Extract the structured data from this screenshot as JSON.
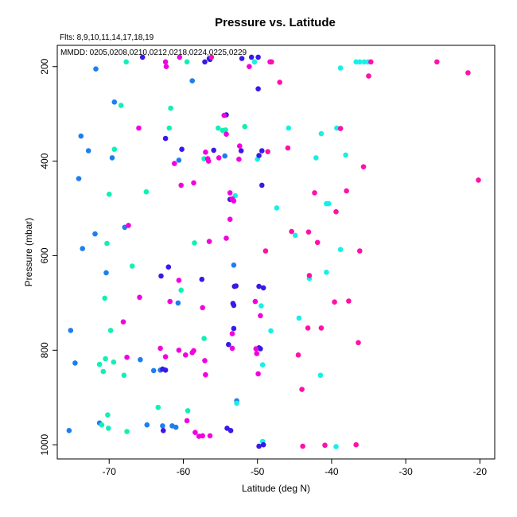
{
  "chart_data": {
    "type": "scatter",
    "title": "Pressure vs. Latitude",
    "subtitle_top": "Flts: 8,9,10,11,14,17,18,19",
    "subtitle_box": "MMDD: 0205,0208,0210,0212,0218,0224,0225,0229",
    "xlabel": "Latitude (deg N)",
    "ylabel": "Pressure (mbar)",
    "xlim": [
      -77,
      -18
    ],
    "ylim": [
      1030,
      155
    ],
    "y_reversed": true,
    "grid": false,
    "xticks": [
      -70,
      -60,
      -50,
      -40,
      -30,
      -20
    ],
    "xtick_labels": [
      "-70",
      "-60",
      "-50",
      "-40",
      "-30",
      "-20"
    ],
    "yticks": [
      200,
      400,
      600,
      800,
      1000
    ],
    "ytick_labels": [
      "200",
      "400",
      "600",
      "800",
      "1000"
    ],
    "colors": {
      "blue": "#1c7ff0",
      "cyan": "#16f0e6",
      "aqua": "#10f0b4",
      "violet": "#3a19e8",
      "magenta": "#f200e0",
      "pink": "#ff10a8"
    },
    "series": [
      {
        "color_key": "blue",
        "points": [
          [
            -71.8,
            205
          ],
          [
            -69.3,
            275
          ],
          [
            -73.8,
            347
          ],
          [
            -72.8,
            378
          ],
          [
            -69.6,
            393
          ],
          [
            -74.1,
            437
          ],
          [
            -71.9,
            554
          ],
          [
            -73.6,
            585
          ],
          [
            -67.9,
            540
          ],
          [
            -70.4,
            636
          ],
          [
            -60.6,
            398
          ],
          [
            -75.2,
            758
          ],
          [
            -74.6,
            827
          ],
          [
            -65.8,
            820
          ],
          [
            -64,
            843
          ],
          [
            -75.4,
            970
          ],
          [
            -71.3,
            954
          ],
          [
            -64.9,
            958
          ],
          [
            -62.8,
            960
          ],
          [
            -61.5,
            960
          ],
          [
            -61,
            963
          ],
          [
            -60.7,
            700
          ],
          [
            -63.1,
            842
          ],
          [
            -58.8,
            230
          ],
          [
            -54.4,
            389
          ],
          [
            -52.8,
            907
          ],
          [
            -53.2,
            620
          ]
        ]
      },
      {
        "color_key": "cyan",
        "points": [
          [
            -40.7,
            490
          ],
          [
            -40.4,
            490
          ],
          [
            -47.4,
            499
          ],
          [
            -44.9,
            557
          ],
          [
            -38.8,
            587
          ],
          [
            -40.7,
            635
          ],
          [
            -43,
            648
          ],
          [
            -49.5,
            706
          ],
          [
            -48.2,
            759
          ],
          [
            -44.4,
            732
          ],
          [
            -41.5,
            853
          ],
          [
            -39.4,
            1004
          ],
          [
            -49.3,
            993
          ],
          [
            -49.3,
            831
          ],
          [
            -36.7,
            190
          ],
          [
            -36.2,
            190
          ],
          [
            -35.6,
            190
          ],
          [
            -35.1,
            190
          ],
          [
            -38.8,
            203
          ],
          [
            -39.3,
            330
          ],
          [
            -41.4,
            342
          ],
          [
            -42.1,
            393
          ],
          [
            -38.1,
            387
          ],
          [
            -45.8,
            330
          ],
          [
            -50.4,
            190
          ],
          [
            -52.8,
            912
          ],
          [
            -53,
            473
          ],
          [
            -50,
            396
          ]
        ]
      },
      {
        "color_key": "aqua",
        "points": [
          [
            -67.7,
            190
          ],
          [
            -59.5,
            190
          ],
          [
            -68.4,
            282
          ],
          [
            -61.7,
            288
          ],
          [
            -61.9,
            330
          ],
          [
            -69.3,
            375
          ],
          [
            -65,
            465
          ],
          [
            -70,
            470
          ],
          [
            -70.3,
            574
          ],
          [
            -66.9,
            622
          ],
          [
            -58.5,
            573
          ],
          [
            -60.3,
            673
          ],
          [
            -70.6,
            690
          ],
          [
            -69.8,
            758
          ],
          [
            -57.2,
            775
          ],
          [
            -69.4,
            825
          ],
          [
            -70.5,
            818
          ],
          [
            -71.3,
            830
          ],
          [
            -70.8,
            845
          ],
          [
            -68,
            853
          ],
          [
            -71,
            958
          ],
          [
            -70.1,
            965
          ],
          [
            -70.2,
            937
          ],
          [
            -67.6,
            972
          ],
          [
            -63.4,
            921
          ],
          [
            -59.4,
            928
          ],
          [
            -55.3,
            330
          ],
          [
            -54.7,
            335
          ],
          [
            -54.3,
            334
          ],
          [
            -51.7,
            327
          ],
          [
            -57.2,
            395
          ]
        ]
      },
      {
        "color_key": "violet",
        "points": [
          [
            -56.5,
            183
          ],
          [
            -56.4,
            185
          ],
          [
            -65.5,
            180
          ],
          [
            -52.1,
            183
          ],
          [
            -50.8,
            180
          ],
          [
            -49.9,
            180
          ],
          [
            -57.1,
            190
          ],
          [
            -49.9,
            247
          ],
          [
            -62.4,
            352
          ],
          [
            -60.2,
            375
          ],
          [
            -55.9,
            377
          ],
          [
            -54.2,
            302
          ],
          [
            -52.2,
            378
          ],
          [
            -49.4,
            378
          ],
          [
            -49.8,
            388
          ],
          [
            -49.4,
            451
          ],
          [
            -53.7,
            481
          ],
          [
            -62,
            624
          ],
          [
            -63,
            643
          ],
          [
            -57.5,
            650
          ],
          [
            -53.1,
            665
          ],
          [
            -52.9,
            664
          ],
          [
            -49.8,
            665
          ],
          [
            -49.2,
            668
          ],
          [
            -53.3,
            701
          ],
          [
            -53.2,
            705
          ],
          [
            -53.2,
            754
          ],
          [
            -49.8,
            795
          ],
          [
            -49.6,
            797
          ],
          [
            -53.9,
            788
          ],
          [
            -62.8,
            840
          ],
          [
            -62.4,
            842
          ],
          [
            -54.1,
            965
          ],
          [
            -53.6,
            970
          ],
          [
            -62.7,
            970
          ],
          [
            -49.8,
            1003
          ],
          [
            -49.2,
            1000
          ]
        ]
      },
      {
        "color_key": "magenta",
        "points": [
          [
            -60.5,
            180
          ],
          [
            -62.3,
            200
          ],
          [
            -62.4,
            190
          ],
          [
            -66,
            330
          ],
          [
            -61.2,
            405
          ],
          [
            -60.3,
            451
          ],
          [
            -58.6,
            446
          ],
          [
            -56.7,
            395
          ],
          [
            -56.6,
            400
          ],
          [
            -57,
            381
          ],
          [
            -53.7,
            467
          ],
          [
            -53.7,
            523
          ],
          [
            -53.4,
            480
          ],
          [
            -54.2,
            563
          ],
          [
            -56.5,
            570
          ],
          [
            -67.4,
            536
          ],
          [
            -60.6,
            652
          ],
          [
            -61.8,
            697
          ],
          [
            -57.4,
            710
          ],
          [
            -65.9,
            688
          ],
          [
            -68.1,
            740
          ],
          [
            -62.4,
            814
          ],
          [
            -60.6,
            800
          ],
          [
            -59.7,
            810
          ],
          [
            -58.8,
            805
          ],
          [
            -58.6,
            801
          ],
          [
            -57.1,
            822
          ],
          [
            -67.6,
            815
          ],
          [
            -63.1,
            796
          ],
          [
            -57,
            852
          ],
          [
            -59.5,
            949
          ],
          [
            -58.4,
            974
          ],
          [
            -57.4,
            981
          ],
          [
            -57.9,
            982
          ],
          [
            -56.4,
            981
          ],
          [
            -50.2,
            797
          ],
          [
            -50.1,
            807
          ],
          [
            -53.4,
            796
          ],
          [
            -50.3,
            697
          ],
          [
            -49.6,
            727
          ],
          [
            -49.9,
            850
          ],
          [
            -54.5,
            303
          ],
          [
            -54.2,
            343
          ],
          [
            -55.2,
            393
          ],
          [
            -52.4,
            368
          ],
          [
            -52.5,
            396
          ],
          [
            -53.2,
            484
          ],
          [
            -53.4,
            765
          ],
          [
            -48.3,
            190
          ],
          [
            -51.1,
            200
          ]
        ]
      },
      {
        "color_key": "pink",
        "points": [
          [
            -56.2,
            180
          ],
          [
            -48.1,
            190
          ],
          [
            -34.7,
            190
          ],
          [
            -25.8,
            190
          ],
          [
            -21.6,
            213
          ],
          [
            -35,
            220
          ],
          [
            -47,
            233
          ],
          [
            -38.8,
            331
          ],
          [
            -45.9,
            372
          ],
          [
            -35.7,
            412
          ],
          [
            -38,
            463
          ],
          [
            -42.3,
            467
          ],
          [
            -20.2,
            440
          ],
          [
            -39.4,
            507
          ],
          [
            -45.4,
            549
          ],
          [
            -43.1,
            550
          ],
          [
            -41.9,
            572
          ],
          [
            -36.2,
            590
          ],
          [
            -43,
            642
          ],
          [
            -39.6,
            698
          ],
          [
            -37.7,
            696
          ],
          [
            -43.2,
            753
          ],
          [
            -41.4,
            753
          ],
          [
            -44.5,
            810
          ],
          [
            -36.4,
            784
          ],
          [
            -44,
            883
          ],
          [
            -36.7,
            1000
          ],
          [
            -40.9,
            1001
          ],
          [
            -43.9,
            1003
          ],
          [
            -48.6,
            380
          ],
          [
            -48.9,
            590
          ]
        ]
      }
    ]
  }
}
